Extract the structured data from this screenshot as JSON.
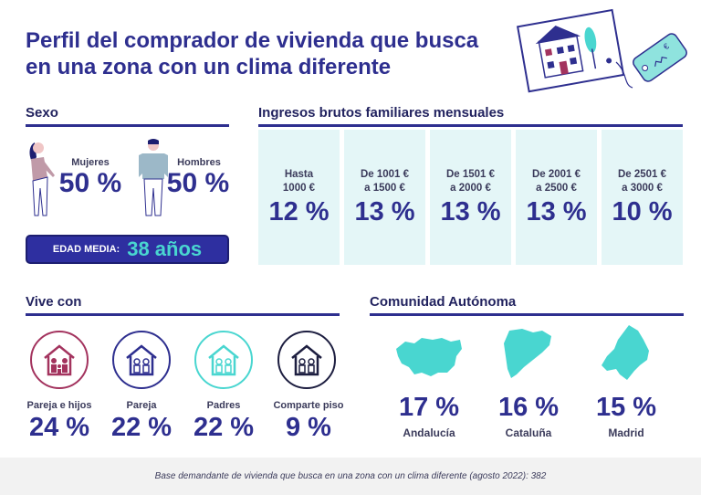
{
  "title": "Perfil del comprador de vivienda que busca\nen una zona con un clima diferente",
  "colors": {
    "navy": "#2e2f8f",
    "teal": "#49d6d0",
    "light_teal": "#e4f6f7",
    "maroon": "#a3335e"
  },
  "sexo": {
    "heading": "Sexo",
    "female": {
      "label": "Mujeres",
      "value": "50 %"
    },
    "male": {
      "label": "Hombres",
      "value": "50 %"
    },
    "edad_label": "EDAD MEDIA:",
    "edad_value": "38 años"
  },
  "ingresos": {
    "heading": "Ingresos brutos familiares mensuales",
    "columns": [
      {
        "label": "Hasta\n1000 €",
        "value": "12 %"
      },
      {
        "label": "De 1001 €\na 1500 €",
        "value": "13 %"
      },
      {
        "label": "De 1501 €\na 2000 €",
        "value": "13 %"
      },
      {
        "label": "De 2001 €\na 2500 €",
        "value": "13 %"
      },
      {
        "label": "De 2501 €\na 3000 €",
        "value": "10 %"
      }
    ]
  },
  "vive_con": {
    "heading": "Vive con",
    "items": [
      {
        "label": "Pareja e hijos",
        "value": "24 %",
        "icon": "house-family-icon"
      },
      {
        "label": "Pareja",
        "value": "22 %",
        "icon": "house-couple-icon"
      },
      {
        "label": "Padres",
        "value": "22 %",
        "icon": "house-parents-icon"
      },
      {
        "label": "Comparte piso",
        "value": "9 %",
        "icon": "house-shared-icon"
      }
    ]
  },
  "comunidad": {
    "heading": "Comunidad Autónoma",
    "items": [
      {
        "label": "Andalucía",
        "value": "17 %"
      },
      {
        "label": "Cataluña",
        "value": "16 %"
      },
      {
        "label": "Madrid",
        "value": "15 %"
      }
    ]
  },
  "footer": "Base demandante de vivienda que busca en una zona con un clima diferente (agosto 2022): 382"
}
